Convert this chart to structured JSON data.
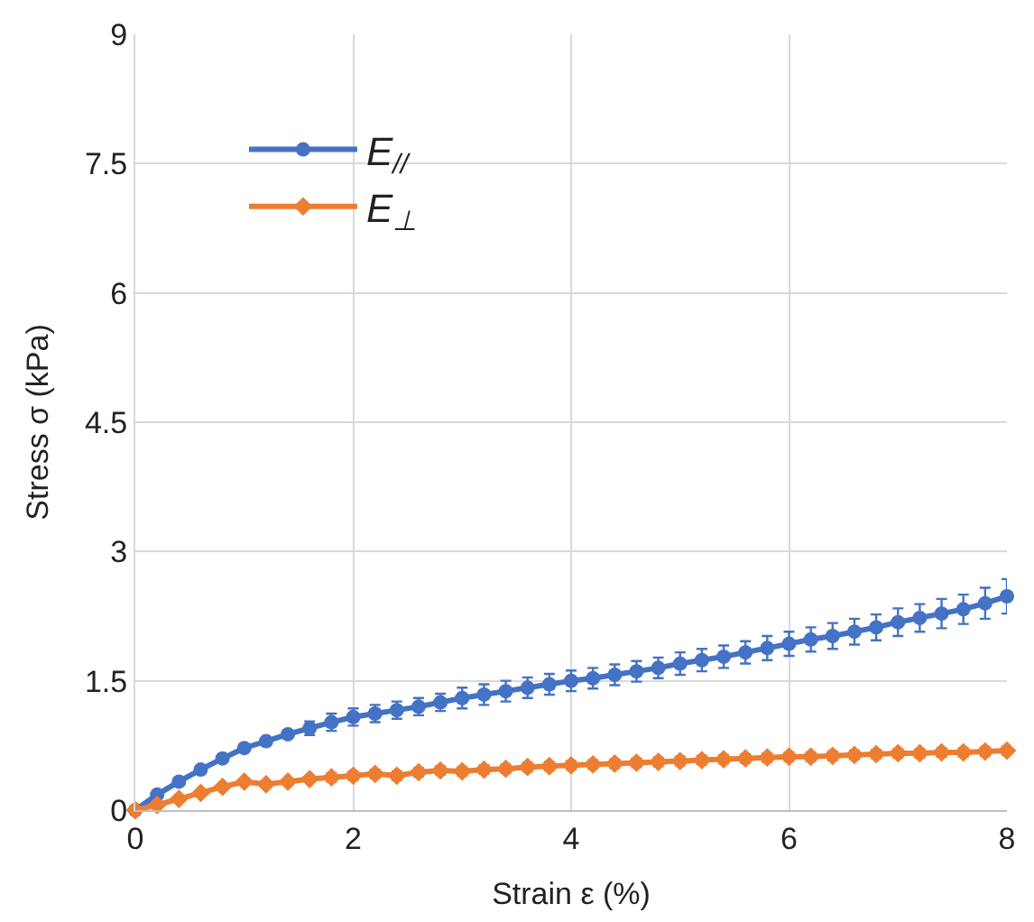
{
  "chart_data": {
    "type": "line",
    "xlabel": "Strain ε (%)",
    "ylabel": "Stress σ (kPa)",
    "x": [
      0,
      0.2,
      0.4,
      0.6,
      0.8,
      1.0,
      1.2,
      1.4,
      1.6,
      1.8,
      2.0,
      2.2,
      2.4,
      2.6,
      2.8,
      3.0,
      3.2,
      3.4,
      3.6,
      3.8,
      4.0,
      4.2,
      4.4,
      4.6,
      4.8,
      5.0,
      5.2,
      5.4,
      5.6,
      5.8,
      6.0,
      6.2,
      6.4,
      6.6,
      6.8,
      7.0,
      7.2,
      7.4,
      7.6,
      7.8,
      8.0
    ],
    "series": [
      {
        "name": "E$_{//}$",
        "color": "#4472c4",
        "marker": "circle",
        "values": [
          0,
          0.18,
          0.33,
          0.47,
          0.6,
          0.72,
          0.8,
          0.88,
          0.95,
          1.02,
          1.08,
          1.12,
          1.16,
          1.2,
          1.25,
          1.3,
          1.34,
          1.38,
          1.42,
          1.46,
          1.5,
          1.53,
          1.57,
          1.61,
          1.65,
          1.7,
          1.74,
          1.78,
          1.83,
          1.88,
          1.93,
          1.98,
          2.02,
          2.07,
          2.12,
          2.18,
          2.23,
          2.28,
          2.33,
          2.4,
          2.48
        ],
        "errors": [
          null,
          null,
          null,
          null,
          null,
          null,
          null,
          null,
          0.08,
          0.1,
          0.1,
          0.1,
          0.1,
          0.1,
          0.1,
          0.12,
          0.12,
          0.12,
          0.12,
          0.12,
          0.12,
          0.12,
          0.12,
          0.12,
          0.12,
          0.13,
          0.13,
          0.13,
          0.13,
          0.14,
          0.14,
          0.14,
          0.15,
          0.15,
          0.15,
          0.16,
          0.16,
          0.17,
          0.17,
          0.18,
          0.2
        ]
      },
      {
        "name": "E$_{⊥}$",
        "color": "#ed7d31",
        "marker": "diamond",
        "values": [
          0,
          0.06,
          0.13,
          0.2,
          0.27,
          0.33,
          0.3,
          0.33,
          0.36,
          0.38,
          0.4,
          0.42,
          0.4,
          0.44,
          0.46,
          0.45,
          0.47,
          0.48,
          0.5,
          0.51,
          0.52,
          0.53,
          0.54,
          0.55,
          0.56,
          0.57,
          0.58,
          0.59,
          0.6,
          0.61,
          0.62,
          0.62,
          0.63,
          0.64,
          0.65,
          0.66,
          0.66,
          0.67,
          0.67,
          0.68,
          0.69
        ],
        "errors": [
          null,
          null,
          null,
          null,
          null,
          null,
          null,
          null,
          null,
          0.05,
          0.05,
          0.05,
          0.05,
          0.05,
          0.05,
          0.05,
          0.05,
          0.05,
          0.05,
          0.05,
          0.05,
          0.05,
          0.05,
          0.05,
          0.05,
          0.05,
          0.05,
          0.05,
          0.05,
          0.05,
          0.05,
          0.05,
          0.05,
          0.05,
          0.05,
          0.05,
          0.05,
          0.05,
          0.05,
          0.05,
          0.05
        ]
      }
    ],
    "xlim": [
      0,
      8
    ],
    "xticks": [
      0,
      2,
      4,
      6,
      8
    ],
    "ylim": [
      0,
      9
    ],
    "yticks": [
      0,
      1.5,
      3,
      4.5,
      6,
      7.5,
      9
    ],
    "grid": true,
    "legend": "top left",
    "line_style": "solid"
  }
}
